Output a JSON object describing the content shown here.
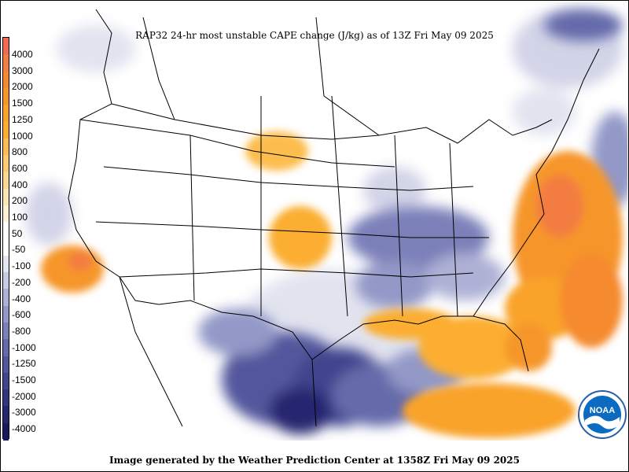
{
  "title": "RAP32 24-hr most unstable CAPE change (J/kg) as of 13Z Fri May 09 2025",
  "footer": "Image generated by the Weather Prediction Center at 1358Z Fri May 09 2025",
  "colorbar": {
    "labels": [
      "4000",
      "3000",
      "2000",
      "1500",
      "1250",
      "1000",
      "800",
      "600",
      "400",
      "200",
      "100",
      "50",
      "-50",
      "-100",
      "-200",
      "-400",
      "-600",
      "-800",
      "-1000",
      "-1250",
      "-1500",
      "-2000",
      "-3000",
      "-4000"
    ],
    "colors": [
      "#f26a4f",
      "#f37d41",
      "#f58a2f",
      "#f6962a",
      "#f9a32b",
      "#fbae33",
      "#fcbd4e",
      "#fdcb6e",
      "#fdd98f",
      "#fde6b2",
      "#fef0d3",
      "#ffffff",
      "#ffffff",
      "#e4e6f1",
      "#c9cde3",
      "#aeb1d5",
      "#9398c7",
      "#7c80b9",
      "#656aaa",
      "#52569c",
      "#41458e",
      "#323680",
      "#25286f",
      "#191a5c"
    ]
  },
  "logo": {
    "text": "NOAA",
    "colors": {
      "outer": "#ffffff",
      "ring": "#2a5fa8",
      "inner": "#0b6bc0",
      "wave": "#ffffff"
    }
  }
}
